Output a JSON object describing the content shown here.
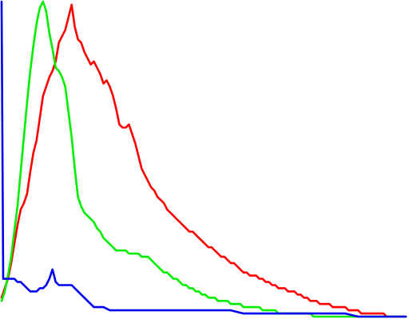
{
  "chart_data": {
    "type": "line",
    "title": "",
    "xlabel": "",
    "ylabel": "",
    "xlim": [
      0,
      255
    ],
    "ylim": [
      0,
      100
    ],
    "grid": false,
    "legend": "none",
    "series": [
      {
        "color": "#ff0000",
        "x": [
          0,
          2,
          4,
          6,
          8,
          10,
          12,
          14,
          16,
          18,
          20,
          22,
          24,
          26,
          28,
          30,
          32,
          34,
          36,
          38,
          40,
          42,
          44,
          46,
          48,
          50,
          52,
          54,
          56,
          58,
          60,
          62,
          64,
          66,
          68,
          70,
          72,
          74,
          76,
          78,
          80,
          82,
          84,
          86,
          88,
          90,
          92,
          94,
          96,
          98,
          100,
          102,
          104,
          106,
          108,
          110,
          112,
          114,
          116,
          118,
          120,
          122,
          124,
          126,
          128,
          130,
          132,
          134,
          136,
          138,
          140,
          142,
          144,
          146,
          148,
          150,
          152,
          154,
          156,
          158,
          160,
          162,
          164,
          166,
          168,
          170,
          172,
          174,
          176,
          178,
          180,
          182,
          184,
          186,
          188,
          190,
          192,
          194,
          196,
          198,
          200,
          202,
          204,
          206,
          208,
          210,
          212,
          214,
          216,
          218,
          220,
          222,
          224,
          226,
          228,
          230,
          232,
          234,
          236,
          238,
          240,
          242,
          244,
          246,
          248,
          250,
          252,
          254
        ],
        "values": [
          6,
          9,
          12,
          17,
          23,
          29,
          34,
          36,
          39,
          46,
          52,
          56,
          63,
          70,
          73,
          76,
          78,
          81,
          87,
          89,
          91,
          95,
          99,
          92,
          88,
          87,
          84,
          82,
          80,
          81,
          79,
          77,
          74,
          75,
          73,
          70,
          66,
          61,
          60,
          60,
          61,
          58,
          55,
          51,
          47,
          45,
          43,
          41,
          40,
          38,
          37,
          36,
          34,
          33,
          32,
          31,
          30,
          29,
          28,
          27,
          27,
          26,
          25,
          24,
          23,
          22,
          22,
          21,
          20,
          19,
          19,
          18,
          17,
          17,
          16,
          15,
          14,
          14,
          13,
          13,
          13,
          12,
          12,
          11,
          11,
          10,
          10,
          9,
          9,
          9,
          8,
          8,
          8,
          7,
          7,
          6,
          6,
          5,
          5,
          5,
          4,
          4,
          4,
          4,
          3,
          3,
          3,
          3,
          3,
          2,
          2,
          2,
          2,
          1,
          1,
          1,
          1,
          1,
          1,
          1,
          1,
          0,
          0,
          0,
          0,
          0,
          0,
          0
        ]
      },
      {
        "color": "#00ee00",
        "x": [
          0,
          2,
          4,
          6,
          8,
          10,
          12,
          14,
          16,
          18,
          20,
          22,
          24,
          26,
          28,
          30,
          32,
          34,
          36,
          38,
          40,
          42,
          44,
          46,
          48,
          50,
          52,
          54,
          56,
          58,
          60,
          62,
          64,
          66,
          68,
          70,
          72,
          74,
          76,
          78,
          80,
          82,
          84,
          86,
          88,
          90,
          92,
          94,
          96,
          98,
          100,
          102,
          104,
          106,
          108,
          110,
          112,
          114,
          116,
          118,
          120,
          122,
          124,
          126,
          128,
          130,
          132,
          134,
          136,
          138,
          140,
          142,
          144,
          146,
          148,
          150,
          152,
          154,
          156,
          158,
          160,
          162,
          164,
          166,
          168,
          170,
          172,
          174,
          176,
          178,
          180,
          182,
          184,
          186,
          188,
          190,
          192,
          194,
          196,
          198,
          200,
          202,
          204,
          206,
          208,
          210,
          212,
          214,
          216,
          218,
          220,
          222,
          224,
          226,
          228,
          230,
          232,
          234,
          236,
          238,
          240,
          242,
          244,
          246,
          248,
          250,
          252,
          254
        ],
        "values": [
          5,
          8,
          13,
          19,
          27,
          35,
          46,
          57,
          68,
          78,
          86,
          93,
          98,
          100,
          97,
          90,
          85,
          79,
          78,
          76,
          73,
          65,
          57,
          47,
          38,
          35,
          33,
          32,
          31,
          30,
          28,
          27,
          25,
          24,
          23,
          22,
          21,
          21,
          21,
          21,
          20,
          20,
          20,
          20,
          19,
          19,
          19,
          18,
          17,
          16,
          15,
          14,
          14,
          13,
          12,
          12,
          11,
          10,
          10,
          9,
          9,
          8,
          8,
          7,
          7,
          6,
          6,
          6,
          5,
          5,
          5,
          5,
          4,
          4,
          4,
          4,
          3,
          3,
          3,
          3,
          3,
          3,
          2,
          2,
          2,
          2,
          2,
          1,
          1,
          1,
          1,
          1,
          1,
          1,
          1,
          1,
          1,
          1,
          0,
          0,
          0,
          0,
          0,
          0,
          0,
          0,
          0,
          0,
          0,
          0,
          0,
          0,
          0,
          0,
          0,
          0,
          0,
          0,
          0,
          0,
          0,
          0,
          0,
          0,
          0,
          0,
          0,
          0
        ]
      },
      {
        "color": "#0000ee",
        "x": [
          0,
          1,
          2,
          3,
          4,
          6,
          8,
          10,
          12,
          14,
          16,
          18,
          20,
          22,
          24,
          26,
          28,
          30,
          32,
          34,
          36,
          38,
          40,
          42,
          44,
          46,
          48,
          50,
          52,
          54,
          56,
          58,
          60,
          64,
          68,
          72,
          76,
          80,
          88,
          96,
          104,
          112,
          120,
          128,
          136,
          144,
          152,
          160,
          168,
          176,
          184,
          192,
          200,
          208,
          216,
          224,
          232,
          240,
          248,
          254
        ],
        "values": [
          100,
          12,
          12,
          12,
          12,
          12,
          12,
          11,
          11,
          10,
          9,
          8,
          8,
          8,
          9,
          9,
          10,
          12,
          15,
          11,
          10,
          10,
          10,
          10,
          10,
          9,
          8,
          7,
          6,
          5,
          4,
          3,
          3,
          3,
          2,
          2,
          2,
          2,
          2,
          2,
          2,
          2,
          2,
          2,
          2,
          2,
          1,
          1,
          1,
          1,
          1,
          1,
          1,
          1,
          1,
          0,
          0,
          0,
          0,
          0
        ]
      }
    ]
  }
}
